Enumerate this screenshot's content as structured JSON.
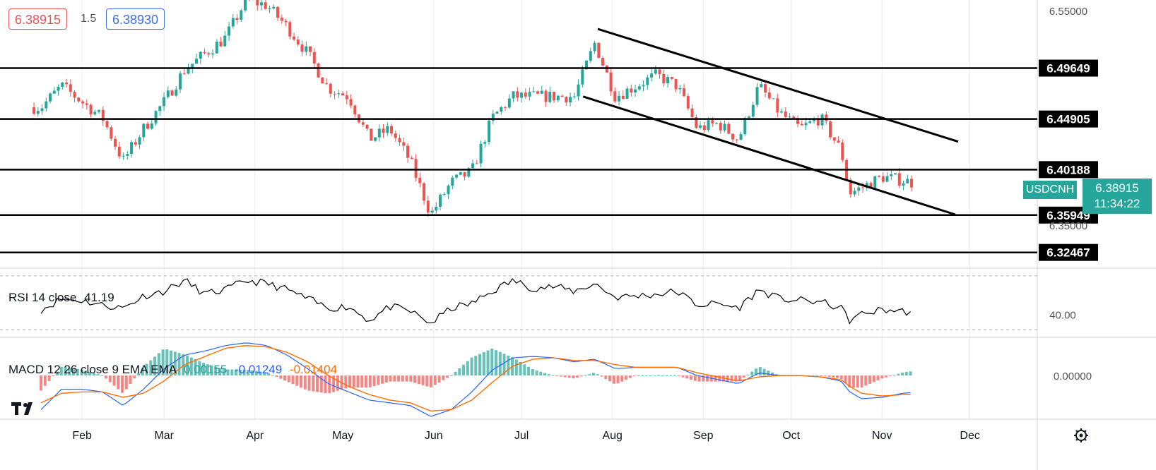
{
  "header": {
    "bid": "6.38915",
    "spread": "1.5",
    "ask": "6.38930"
  },
  "symbol_tag": {
    "symbol": "USDCNH",
    "price": "6.38915",
    "countdown": "11:34:22"
  },
  "rsi": {
    "label": "RSI 14 close",
    "value": "41.19",
    "axis_tick": "40.00"
  },
  "macd": {
    "label": "MACD 12 26 close 9 EMA EMA",
    "histogram": "0.00155",
    "macd": "-0.01249",
    "signal": "-0.01404",
    "axis_tick": "0.00000"
  },
  "colors": {
    "up": "#26a69a",
    "down": "#ef5350",
    "macd_line": "#2962ff",
    "signal_line": "#ff6d00",
    "rsi_line": "#000000",
    "level_line": "#000000"
  },
  "chart_data": {
    "type": "candlestick",
    "symbol": "USDCNH",
    "ylim": [
      6.31,
      6.56
    ],
    "price_axis_ticks": [
      6.55,
      6.35
    ],
    "x_ticks": [
      "Feb",
      "Mar",
      "Apr",
      "May",
      "Jun",
      "Jul",
      "Aug",
      "Sep",
      "Oct",
      "Nov",
      "Dec"
    ],
    "horizontal_levels": [
      {
        "value": 6.49649,
        "label": "6.49649"
      },
      {
        "value": 6.44905,
        "label": "6.44905"
      },
      {
        "value": 6.40188,
        "label": "6.40188"
      },
      {
        "value": 6.35949,
        "label": "6.35949"
      },
      {
        "value": 6.32467,
        "label": "6.32467"
      }
    ],
    "channel": {
      "upper": {
        "start": [
          "2021-07-27",
          6.533
        ],
        "end": [
          "2021-11-27",
          6.428
        ]
      },
      "lower": {
        "start": [
          "2021-07-22",
          6.47
        ],
        "end": [
          "2021-11-26",
          6.36
        ]
      }
    },
    "price_path": [
      [
        "2021-01-18",
        6.46
      ],
      [
        "2021-01-25",
        6.48
      ],
      [
        "2021-02-01",
        6.465
      ],
      [
        "2021-02-08",
        6.45
      ],
      [
        "2021-02-15",
        6.41
      ],
      [
        "2021-02-22",
        6.44
      ],
      [
        "2021-03-01",
        6.465
      ],
      [
        "2021-03-08",
        6.495
      ],
      [
        "2021-03-15",
        6.51
      ],
      [
        "2021-03-22",
        6.525
      ],
      [
        "2021-03-29",
        6.56
      ],
      [
        "2021-04-05",
        6.555
      ],
      [
        "2021-04-12",
        6.535
      ],
      [
        "2021-04-19",
        6.51
      ],
      [
        "2021-04-26",
        6.478
      ],
      [
        "2021-05-03",
        6.47
      ],
      [
        "2021-05-10",
        6.43
      ],
      [
        "2021-05-17",
        6.44
      ],
      [
        "2021-05-24",
        6.41
      ],
      [
        "2021-05-31",
        6.36
      ],
      [
        "2021-06-07",
        6.39
      ],
      [
        "2021-06-14",
        6.4
      ],
      [
        "2021-06-21",
        6.45
      ],
      [
        "2021-06-28",
        6.47
      ],
      [
        "2021-07-05",
        6.47
      ],
      [
        "2021-07-12",
        6.47
      ],
      [
        "2021-07-19",
        6.47
      ],
      [
        "2021-07-26",
        6.52
      ],
      [
        "2021-08-02",
        6.47
      ],
      [
        "2021-08-09",
        6.48
      ],
      [
        "2021-08-16",
        6.49
      ],
      [
        "2021-08-23",
        6.48
      ],
      [
        "2021-08-30",
        6.44
      ],
      [
        "2021-09-06",
        6.445
      ],
      [
        "2021-09-13",
        6.43
      ],
      [
        "2021-09-20",
        6.48
      ],
      [
        "2021-09-27",
        6.455
      ],
      [
        "2021-10-04",
        6.44
      ],
      [
        "2021-10-11",
        6.45
      ],
      [
        "2021-10-18",
        6.42
      ],
      [
        "2021-10-21",
        6.38
      ],
      [
        "2021-10-25",
        6.385
      ],
      [
        "2021-11-01",
        6.395
      ],
      [
        "2021-11-08",
        6.392
      ],
      [
        "2021-11-12",
        6.38915
      ]
    ],
    "rsi_path": [
      [
        "2021-01-18",
        43
      ],
      [
        "2021-01-25",
        50
      ],
      [
        "2021-02-01",
        49
      ],
      [
        "2021-02-08",
        46
      ],
      [
        "2021-02-15",
        44
      ],
      [
        "2021-02-22",
        52
      ],
      [
        "2021-03-01",
        55
      ],
      [
        "2021-03-08",
        62
      ],
      [
        "2021-03-15",
        53
      ],
      [
        "2021-03-22",
        56
      ],
      [
        "2021-03-29",
        62
      ],
      [
        "2021-04-05",
        60
      ],
      [
        "2021-04-12",
        56
      ],
      [
        "2021-04-19",
        50
      ],
      [
        "2021-04-26",
        44
      ],
      [
        "2021-05-03",
        45
      ],
      [
        "2021-05-10",
        36
      ],
      [
        "2021-05-17",
        45
      ],
      [
        "2021-05-24",
        42
      ],
      [
        "2021-05-31",
        34
      ],
      [
        "2021-06-07",
        44
      ],
      [
        "2021-06-14",
        47
      ],
      [
        "2021-06-21",
        55
      ],
      [
        "2021-06-28",
        62
      ],
      [
        "2021-07-05",
        57
      ],
      [
        "2021-07-12",
        58
      ],
      [
        "2021-07-19",
        55
      ],
      [
        "2021-07-26",
        60
      ],
      [
        "2021-08-02",
        51
      ],
      [
        "2021-08-09",
        52
      ],
      [
        "2021-08-16",
        53
      ],
      [
        "2021-08-23",
        55
      ],
      [
        "2021-08-30",
        46
      ],
      [
        "2021-09-06",
        47
      ],
      [
        "2021-09-13",
        44
      ],
      [
        "2021-09-20",
        56
      ],
      [
        "2021-09-27",
        50
      ],
      [
        "2021-10-04",
        49
      ],
      [
        "2021-10-11",
        48
      ],
      [
        "2021-10-18",
        44
      ],
      [
        "2021-10-21",
        36
      ],
      [
        "2021-10-25",
        40
      ],
      [
        "2021-11-01",
        43
      ],
      [
        "2021-11-08",
        42
      ],
      [
        "2021-11-12",
        41.19
      ]
    ],
    "macd": {
      "macd_path": [
        [
          "2021-01-18",
          -0.025
        ],
        [
          "2021-01-25",
          -0.01
        ],
        [
          "2021-02-01",
          -0.01
        ],
        [
          "2021-02-08",
          -0.012
        ],
        [
          "2021-02-15",
          -0.022
        ],
        [
          "2021-02-22",
          -0.01
        ],
        [
          "2021-03-01",
          0.005
        ],
        [
          "2021-03-08",
          0.015
        ],
        [
          "2021-03-15",
          0.018
        ],
        [
          "2021-03-22",
          0.022
        ],
        [
          "2021-03-29",
          0.024
        ],
        [
          "2021-04-05",
          0.022
        ],
        [
          "2021-04-12",
          0.015
        ],
        [
          "2021-04-19",
          0.005
        ],
        [
          "2021-04-26",
          -0.006
        ],
        [
          "2021-05-03",
          -0.012
        ],
        [
          "2021-05-10",
          -0.018
        ],
        [
          "2021-05-17",
          -0.02
        ],
        [
          "2021-05-24",
          -0.022
        ],
        [
          "2021-05-31",
          -0.03
        ],
        [
          "2021-06-07",
          -0.025
        ],
        [
          "2021-06-14",
          -0.012
        ],
        [
          "2021-06-21",
          0.004
        ],
        [
          "2021-06-28",
          0.013
        ],
        [
          "2021-07-05",
          0.014
        ],
        [
          "2021-07-12",
          0.013
        ],
        [
          "2021-07-19",
          0.01
        ],
        [
          "2021-07-26",
          0.012
        ],
        [
          "2021-08-02",
          0.005
        ],
        [
          "2021-08-09",
          0.006
        ],
        [
          "2021-08-16",
          0.006
        ],
        [
          "2021-08-23",
          0.006
        ],
        [
          "2021-08-30",
          0.0
        ],
        [
          "2021-09-06",
          -0.003
        ],
        [
          "2021-09-13",
          -0.006
        ],
        [
          "2021-09-20",
          0.002
        ],
        [
          "2021-09-27",
          0.0
        ],
        [
          "2021-10-04",
          0.0
        ],
        [
          "2021-10-11",
          -0.001
        ],
        [
          "2021-10-18",
          -0.004
        ],
        [
          "2021-10-21",
          -0.012
        ],
        [
          "2021-10-25",
          -0.017
        ],
        [
          "2021-11-01",
          -0.016
        ],
        [
          "2021-11-08",
          -0.013
        ],
        [
          "2021-11-12",
          -0.01249
        ]
      ],
      "signal_path": [
        [
          "2021-01-18",
          -0.02
        ],
        [
          "2021-01-25",
          -0.013
        ],
        [
          "2021-02-01",
          -0.012
        ],
        [
          "2021-02-08",
          -0.012
        ],
        [
          "2021-02-15",
          -0.016
        ],
        [
          "2021-02-22",
          -0.013
        ],
        [
          "2021-03-01",
          -0.004
        ],
        [
          "2021-03-08",
          0.008
        ],
        [
          "2021-03-15",
          0.014
        ],
        [
          "2021-03-22",
          0.02
        ],
        [
          "2021-03-29",
          0.022
        ],
        [
          "2021-04-05",
          0.021
        ],
        [
          "2021-04-12",
          0.017
        ],
        [
          "2021-04-19",
          0.01
        ],
        [
          "2021-04-26",
          0.0
        ],
        [
          "2021-05-03",
          -0.008
        ],
        [
          "2021-05-10",
          -0.014
        ],
        [
          "2021-05-17",
          -0.018
        ],
        [
          "2021-05-24",
          -0.02
        ],
        [
          "2021-05-31",
          -0.026
        ],
        [
          "2021-06-07",
          -0.025
        ],
        [
          "2021-06-14",
          -0.018
        ],
        [
          "2021-06-21",
          -0.005
        ],
        [
          "2021-06-28",
          0.007
        ],
        [
          "2021-07-05",
          0.012
        ],
        [
          "2021-07-12",
          0.013
        ],
        [
          "2021-07-19",
          0.011
        ],
        [
          "2021-07-26",
          0.011
        ],
        [
          "2021-08-02",
          0.008
        ],
        [
          "2021-08-09",
          0.006
        ],
        [
          "2021-08-16",
          0.006
        ],
        [
          "2021-08-23",
          0.006
        ],
        [
          "2021-08-30",
          0.002
        ],
        [
          "2021-09-06",
          -0.001
        ],
        [
          "2021-09-13",
          -0.004
        ],
        [
          "2021-09-20",
          -0.001
        ],
        [
          "2021-09-27",
          0.0
        ],
        [
          "2021-10-04",
          0.0
        ],
        [
          "2021-10-11",
          -0.001
        ],
        [
          "2021-10-18",
          -0.003
        ],
        [
          "2021-10-21",
          -0.008
        ],
        [
          "2021-10-25",
          -0.013
        ],
        [
          "2021-11-01",
          -0.015
        ],
        [
          "2021-11-08",
          -0.014
        ],
        [
          "2021-11-12",
          -0.01404
        ]
      ]
    }
  }
}
